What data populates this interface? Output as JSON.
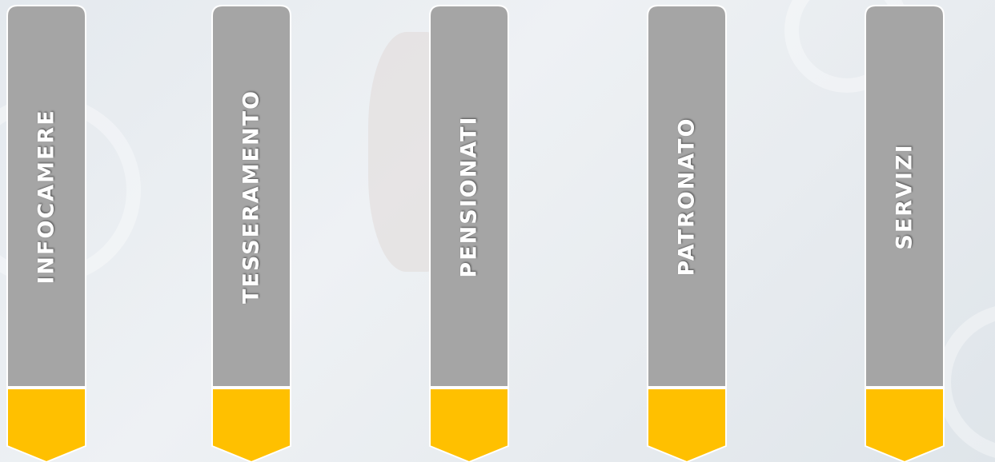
{
  "tabs": [
    {
      "label": "INFOCAMERE"
    },
    {
      "label": "TESSERAMENTO"
    },
    {
      "label": "PENSIONATI"
    },
    {
      "label": "PATRONATO"
    },
    {
      "label": "SERVIZI"
    }
  ]
}
